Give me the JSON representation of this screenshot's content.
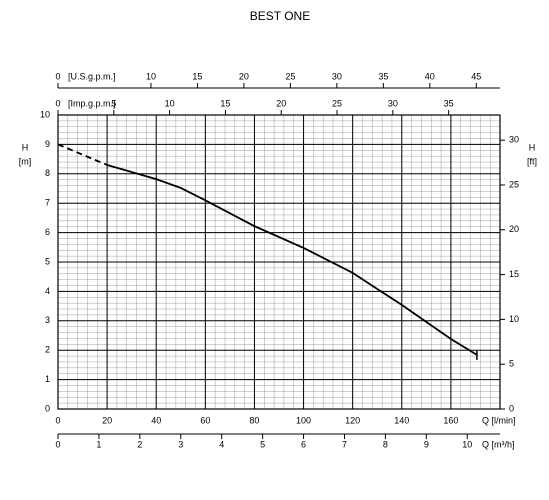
{
  "chart_data": {
    "type": "line",
    "title": "BEST ONE",
    "xlabel": "Q [l/min]",
    "xlim": [
      0,
      180
    ],
    "xticks": [
      0,
      20,
      40,
      60,
      80,
      100,
      120,
      140,
      160
    ],
    "ylabel": [
      "H",
      "[m]"
    ],
    "ylim": [
      0,
      10
    ],
    "yticks": [
      0,
      1,
      2,
      3,
      4,
      5,
      6,
      7,
      8,
      9,
      10
    ],
    "y2label": [
      "H",
      "[ft]"
    ],
    "y2lim": [
      0,
      32.81
    ],
    "y2ticks": [
      0,
      5,
      10,
      15,
      20,
      25,
      30
    ],
    "grid": true,
    "extra_x_axes": [
      {
        "label": "[U.S.g.p.m.]",
        "lim": [
          0,
          47.55
        ],
        "ticks": [
          0,
          10,
          15,
          20,
          25,
          30,
          35,
          40,
          45
        ]
      },
      {
        "label": "[Imp.g.p.m.]",
        "lim": [
          0,
          39.6
        ],
        "ticks": [
          0,
          5,
          10,
          15,
          20,
          25,
          30,
          35
        ]
      },
      {
        "label": "Q [m³/h]",
        "lim": [
          0,
          10.8
        ],
        "ticks": [
          0,
          1,
          2,
          3,
          4,
          5,
          6,
          7,
          8,
          9,
          10
        ]
      }
    ],
    "series": [
      {
        "color": "#000000",
        "dash": true,
        "x": [
          0,
          10,
          20
        ],
        "values": [
          9.0,
          8.65,
          8.3
        ]
      },
      {
        "color": "#000000",
        "dash": false,
        "x": [
          20,
          40,
          50,
          60,
          80,
          100,
          120,
          140,
          160,
          170.6
        ],
        "values": [
          8.3,
          7.82,
          7.52,
          7.1,
          6.22,
          5.48,
          4.63,
          3.54,
          2.38,
          1.84
        ]
      }
    ]
  }
}
